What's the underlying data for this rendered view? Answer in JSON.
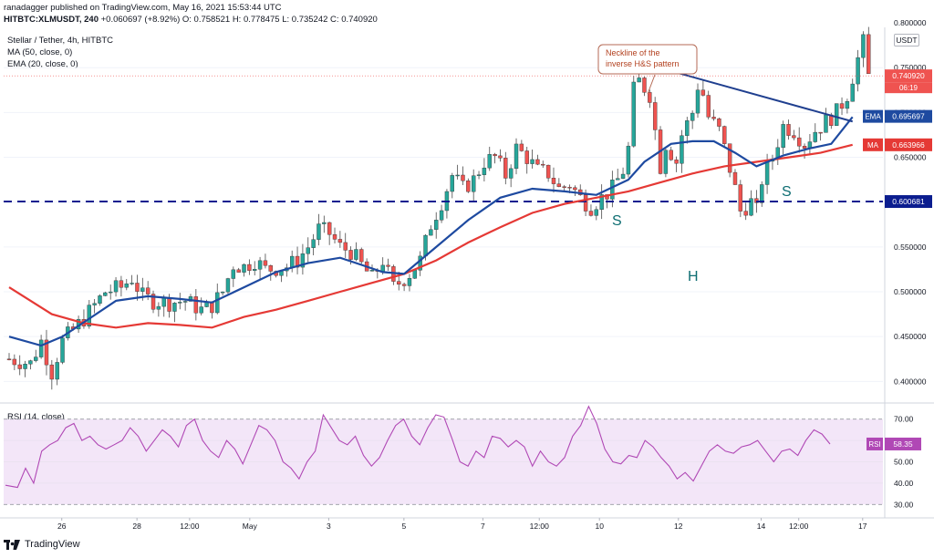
{
  "header": {
    "publisher_line": "ranadagger published on TradingView.com, May 16, 2021 15:53:44 UTC",
    "symbol": "HITBTC:XLMUSDT, 240",
    "change": "+0.060697 (+8.92%)",
    "ohlc": "O: 0.758521 H: 0.778475 L: 0.735242 C: 0.740920"
  },
  "legend": {
    "title": "Stellar / Tether, 4h, HITBTC",
    "ma": "MA (50, close, 0)",
    "ema": "EMA (20, close, 0)",
    "rsi": "RSI (14, close)"
  },
  "currency": "USDT",
  "watermark": "TradingView",
  "colors": {
    "up": "#26a69a",
    "down": "#ef5350",
    "ema": "#1e4aa0",
    "ma": "#e53935",
    "rsi": "#b048b5",
    "rsi_band": "#f3e6f8",
    "neckline": "#1f3f8f",
    "support": "#0b1d8f",
    "pattern_label": "#0d6d72"
  },
  "chart_data": [
    {
      "type": "candlestick",
      "title": "Stellar / Tether, 4h, HITBTC",
      "ylim": [
        0.38,
        0.795
      ],
      "price_ticks": [
        "0.750000",
        "0.700000",
        "0.650000",
        "0.550000",
        "0.500000",
        "0.450000",
        "0.400000"
      ],
      "x_labels": [
        "26",
        "28",
        "12:00",
        "May",
        "3",
        "5",
        "7",
        "12:00",
        "10",
        "12",
        "14",
        "12:00",
        "17"
      ],
      "candles_count": 150,
      "candle_anchors": [
        [
          0,
          0.425
        ],
        [
          4,
          0.42
        ],
        [
          6,
          0.445
        ],
        [
          8,
          0.41
        ],
        [
          10,
          0.445
        ],
        [
          14,
          0.47
        ],
        [
          18,
          0.5
        ],
        [
          21,
          0.505
        ],
        [
          23,
          0.515
        ],
        [
          25,
          0.495
        ],
        [
          27,
          0.49
        ],
        [
          30,
          0.488
        ],
        [
          33,
          0.49
        ],
        [
          36,
          0.48
        ],
        [
          38,
          0.485
        ],
        [
          40,
          0.5
        ],
        [
          42,
          0.53
        ],
        [
          44,
          0.528
        ],
        [
          46,
          0.535
        ],
        [
          48,
          0.525
        ],
        [
          52,
          0.528
        ],
        [
          54,
          0.535
        ],
        [
          56,
          0.55
        ],
        [
          58,
          0.57
        ],
        [
          60,
          0.565
        ],
        [
          62,
          0.55
        ],
        [
          64,
          0.545
        ],
        [
          66,
          0.53
        ],
        [
          68,
          0.515
        ],
        [
          70,
          0.535
        ],
        [
          72,
          0.505
        ],
        [
          75,
          0.52
        ],
        [
          77,
          0.535
        ],
        [
          79,
          0.575
        ],
        [
          81,
          0.6
        ],
        [
          83,
          0.63
        ],
        [
          85,
          0.615
        ],
        [
          87,
          0.625
        ],
        [
          89,
          0.645
        ],
        [
          91,
          0.65
        ],
        [
          93,
          0.63
        ],
        [
          95,
          0.66
        ],
        [
          97,
          0.65
        ],
        [
          99,
          0.635
        ],
        [
          101,
          0.632
        ],
        [
          103,
          0.615
        ],
        [
          105,
          0.62
        ],
        [
          107,
          0.605
        ],
        [
          109,
          0.595
        ],
        [
          111,
          0.605
        ],
        [
          113,
          0.615
        ],
        [
          115,
          0.635
        ],
        [
          116,
          0.66
        ],
        [
          117,
          0.725
        ],
        [
          118,
          0.735
        ],
        [
          120,
          0.72
        ],
        [
          121,
          0.68
        ],
        [
          122,
          0.64
        ],
        [
          123,
          0.665
        ],
        [
          125,
          0.645
        ],
        [
          126,
          0.675
        ],
        [
          128,
          0.7
        ],
        [
          129,
          0.73
        ],
        [
          130,
          0.72
        ],
        [
          131,
          0.695
        ],
        [
          133,
          0.68
        ],
        [
          134,
          0.66
        ],
        [
          136,
          0.615
        ],
        [
          137,
          0.59
        ],
        [
          139,
          0.6
        ],
        [
          140,
          0.59
        ],
        [
          141,
          0.625
        ],
        [
          143,
          0.65
        ],
        [
          145,
          0.685
        ],
        [
          147,
          0.68
        ],
        [
          149,
          0.665
        ],
        [
          151,
          0.68
        ],
        [
          153,
          0.69
        ],
        [
          155,
          0.7
        ],
        [
          157,
          0.72
        ],
        [
          159,
          0.76
        ],
        [
          160,
          0.778
        ],
        [
          161,
          0.74
        ]
      ],
      "ma50": [
        [
          0,
          0.505
        ],
        [
          8,
          0.475
        ],
        [
          14,
          0.465
        ],
        [
          20,
          0.46
        ],
        [
          26,
          0.465
        ],
        [
          32,
          0.463
        ],
        [
          38,
          0.46
        ],
        [
          44,
          0.472
        ],
        [
          50,
          0.48
        ],
        [
          56,
          0.49
        ],
        [
          62,
          0.5
        ],
        [
          68,
          0.51
        ],
        [
          74,
          0.52
        ],
        [
          80,
          0.535
        ],
        [
          86,
          0.555
        ],
        [
          92,
          0.572
        ],
        [
          98,
          0.588
        ],
        [
          104,
          0.598
        ],
        [
          110,
          0.605
        ],
        [
          116,
          0.612
        ],
        [
          122,
          0.622
        ],
        [
          128,
          0.632
        ],
        [
          134,
          0.64
        ],
        [
          140,
          0.645
        ],
        [
          146,
          0.65
        ],
        [
          152,
          0.655
        ],
        [
          158,
          0.664
        ]
      ],
      "ema20": [
        [
          0,
          0.45
        ],
        [
          6,
          0.44
        ],
        [
          10,
          0.45
        ],
        [
          14,
          0.466
        ],
        [
          20,
          0.49
        ],
        [
          26,
          0.495
        ],
        [
          32,
          0.492
        ],
        [
          38,
          0.488
        ],
        [
          44,
          0.505
        ],
        [
          50,
          0.522
        ],
        [
          56,
          0.532
        ],
        [
          62,
          0.538
        ],
        [
          66,
          0.53
        ],
        [
          70,
          0.522
        ],
        [
          74,
          0.52
        ],
        [
          80,
          0.55
        ],
        [
          86,
          0.58
        ],
        [
          92,
          0.605
        ],
        [
          98,
          0.615
        ],
        [
          104,
          0.612
        ],
        [
          110,
          0.608
        ],
        [
          116,
          0.625
        ],
        [
          119,
          0.645
        ],
        [
          124,
          0.665
        ],
        [
          128,
          0.668
        ],
        [
          132,
          0.668
        ],
        [
          136,
          0.655
        ],
        [
          140,
          0.64
        ],
        [
          145,
          0.652
        ],
        [
          150,
          0.66
        ],
        [
          154,
          0.665
        ],
        [
          158,
          0.695
        ]
      ],
      "support_line": 0.600681,
      "neckline": [
        [
          0.757,
          "10 May"
        ],
        [
          0.69,
          "15 May"
        ]
      ],
      "labels": {
        "ema_tag": "0.695697",
        "ma_tag": "0.663966",
        "price_tag": "0.740920",
        "countdown": "06:19",
        "support_tag": "0.600681",
        "ema_tag_name": "EMA",
        "ma_tag_name": "MA",
        "top_tick_partial": "0.800000"
      },
      "annotations": {
        "callout": [
          "Neckline of the",
          "inverse H&S pattern"
        ],
        "left_shoulder": "S",
        "head": "H",
        "right_shoulder": "S"
      }
    },
    {
      "type": "line",
      "title": "RSI (14, close)",
      "ylim": [
        25,
        75
      ],
      "ticks": [
        "70.00",
        "60.00",
        "50.00",
        "40.00",
        "30.00"
      ],
      "band": [
        30,
        70
      ],
      "current": "58.35",
      "tag_name": "RSI",
      "values": [
        [
          0,
          39
        ],
        [
          6,
          38
        ],
        [
          10,
          47
        ],
        [
          14,
          40
        ],
        [
          18,
          55
        ],
        [
          22,
          58
        ],
        [
          26,
          60
        ],
        [
          30,
          66
        ],
        [
          34,
          68
        ],
        [
          38,
          60
        ],
        [
          42,
          62
        ],
        [
          46,
          58
        ],
        [
          50,
          56
        ],
        [
          54,
          58
        ],
        [
          58,
          60
        ],
        [
          62,
          66
        ],
        [
          66,
          62
        ],
        [
          70,
          55
        ],
        [
          74,
          60
        ],
        [
          78,
          65
        ],
        [
          82,
          62
        ],
        [
          86,
          57
        ],
        [
          90,
          67
        ],
        [
          94,
          70
        ],
        [
          98,
          60
        ],
        [
          102,
          55
        ],
        [
          106,
          52
        ],
        [
          110,
          60
        ],
        [
          114,
          56
        ],
        [
          118,
          49
        ],
        [
          122,
          58
        ],
        [
          126,
          67
        ],
        [
          130,
          65
        ],
        [
          134,
          60
        ],
        [
          138,
          50
        ],
        [
          142,
          47
        ],
        [
          146,
          42
        ],
        [
          150,
          50
        ],
        [
          154,
          55
        ],
        [
          158,
          72
        ],
        [
          162,
          66
        ],
        [
          166,
          60
        ],
        [
          170,
          58
        ],
        [
          174,
          62
        ],
        [
          178,
          53
        ],
        [
          182,
          48
        ],
        [
          186,
          52
        ],
        [
          190,
          60
        ],
        [
          194,
          67
        ],
        [
          198,
          70
        ],
        [
          202,
          62
        ],
        [
          206,
          58
        ],
        [
          210,
          66
        ],
        [
          214,
          72
        ],
        [
          218,
          71
        ],
        [
          222,
          61
        ],
        [
          226,
          50
        ],
        [
          230,
          48
        ],
        [
          234,
          55
        ],
        [
          238,
          52
        ],
        [
          242,
          62
        ],
        [
          246,
          61
        ],
        [
          250,
          57
        ],
        [
          254,
          60
        ],
        [
          258,
          57
        ],
        [
          262,
          48
        ],
        [
          266,
          55
        ],
        [
          270,
          50
        ],
        [
          274,
          48
        ],
        [
          278,
          52
        ],
        [
          282,
          62
        ],
        [
          286,
          67
        ],
        [
          290,
          76
        ],
        [
          294,
          68
        ],
        [
          298,
          56
        ],
        [
          302,
          50
        ],
        [
          306,
          49
        ],
        [
          310,
          53
        ],
        [
          314,
          52
        ],
        [
          318,
          60
        ],
        [
          322,
          57
        ],
        [
          326,
          52
        ],
        [
          330,
          48
        ],
        [
          334,
          42
        ],
        [
          338,
          45
        ],
        [
          342,
          41
        ],
        [
          346,
          48
        ],
        [
          350,
          55
        ],
        [
          354,
          58
        ],
        [
          358,
          55
        ],
        [
          362,
          54
        ],
        [
          366,
          57
        ],
        [
          370,
          58
        ],
        [
          374,
          60
        ],
        [
          378,
          55
        ],
        [
          382,
          50
        ],
        [
          386,
          55
        ],
        [
          390,
          56
        ],
        [
          394,
          53
        ],
        [
          398,
          60
        ],
        [
          402,
          65
        ],
        [
          406,
          63
        ],
        [
          410,
          58.35
        ]
      ]
    }
  ]
}
